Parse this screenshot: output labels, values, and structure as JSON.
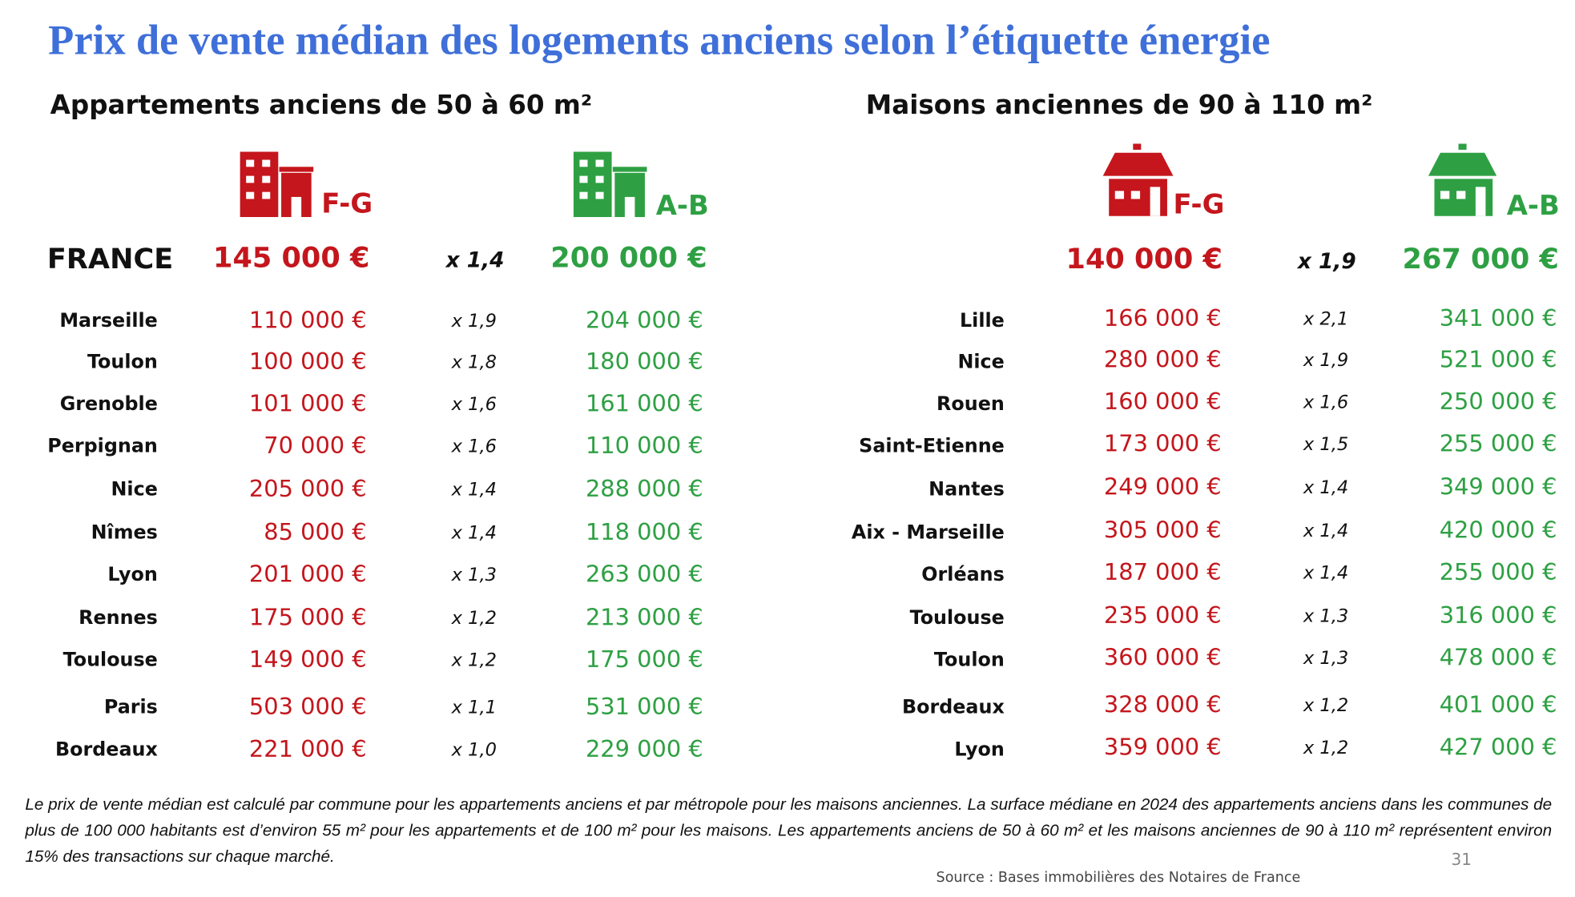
{
  "title": "Prix de vente médian des logements anciens selon l’étiquette énergie",
  "apartments": {
    "heading": "Appartements anciens de 50 à 60 m²",
    "fg_label": "F-G",
    "ab_label": "A-B",
    "france": {
      "name": "FRANCE",
      "fg": "145 000 €",
      "ratio": "x 1,4",
      "ab": "200 000 €"
    },
    "rows": [
      [
        "Marseille",
        "110 000 €",
        "x 1,9",
        "204 000 €"
      ],
      [
        "Toulon",
        "100 000 €",
        "x 1,8",
        "180 000 €"
      ],
      [
        "Grenoble",
        "101 000 €",
        "x 1,6",
        "161 000 €"
      ],
      [
        "Perpignan",
        "70 000 €",
        "x 1,6",
        "110 000 €"
      ],
      [
        "Nice",
        "205 000 €",
        "x 1,4",
        "288 000 €"
      ],
      [
        "Nîmes",
        "85 000 €",
        "x 1,4",
        "118 000 €"
      ],
      [
        "Lyon",
        "201 000 €",
        "x 1,3",
        "263 000 €"
      ],
      [
        "Rennes",
        "175 000 €",
        "x 1,2",
        "213 000 €"
      ],
      [
        "Toulouse",
        "149 000 €",
        "x 1,2",
        "175 000 €"
      ],
      [
        "Paris",
        "503 000 €",
        "x 1,1",
        "531 000 €"
      ],
      [
        "Bordeaux",
        "221 000 €",
        "x 1,0",
        "229 000 €"
      ]
    ]
  },
  "houses": {
    "heading": "Maisons anciennes de 90 à 110 m²",
    "fg_label": "F-G",
    "ab_label": "A-B",
    "france": {
      "fg": "140 000 €",
      "ratio": "x 1,9",
      "ab": "267 000 €"
    },
    "rows": [
      [
        "Lille",
        "166 000 €",
        "x 2,1",
        "341 000 €"
      ],
      [
        "Nice",
        "280 000 €",
        "x 1,9",
        "521 000 €"
      ],
      [
        "Rouen",
        "160 000 €",
        "x 1,6",
        "250 000 €"
      ],
      [
        "Saint-Etienne",
        "173 000 €",
        "x 1,5",
        "255 000 €"
      ],
      [
        "Nantes",
        "249 000 €",
        "x 1,4",
        "349 000 €"
      ],
      [
        "Aix - Marseille",
        "305 000 €",
        "x 1,4",
        "420 000 €"
      ],
      [
        "Orléans",
        "187 000 €",
        "x 1,4",
        "255 000 €"
      ],
      [
        "Toulouse",
        "235 000 €",
        "x 1,3",
        "316 000 €"
      ],
      [
        "Toulon",
        "360 000 €",
        "x 1,3",
        "478 000 €"
      ],
      [
        "Bordeaux",
        "328 000 €",
        "x 1,2",
        "401 000 €"
      ],
      [
        "Lyon",
        "359 000 €",
        "x 1,2",
        "427 000 €"
      ]
    ]
  },
  "footnote": "Le prix de vente médian est calculé par commune pour les appartements anciens et par métropole pour les maisons anciennes. La surface médiane en 2024 des appartements anciens dans les communes de plus de 100 000 habitants est d’environ 55 m² pour les appartements et de 100 m² pour les maisons. Les appartements anciens de 50 à 60 m² et les maisons anciennes de 90 à 110 m² représentent environ 15% des transactions sur chaque marché.",
  "source": "Source :  Bases immobilières des Notaires de France",
  "page_number": "31"
}
